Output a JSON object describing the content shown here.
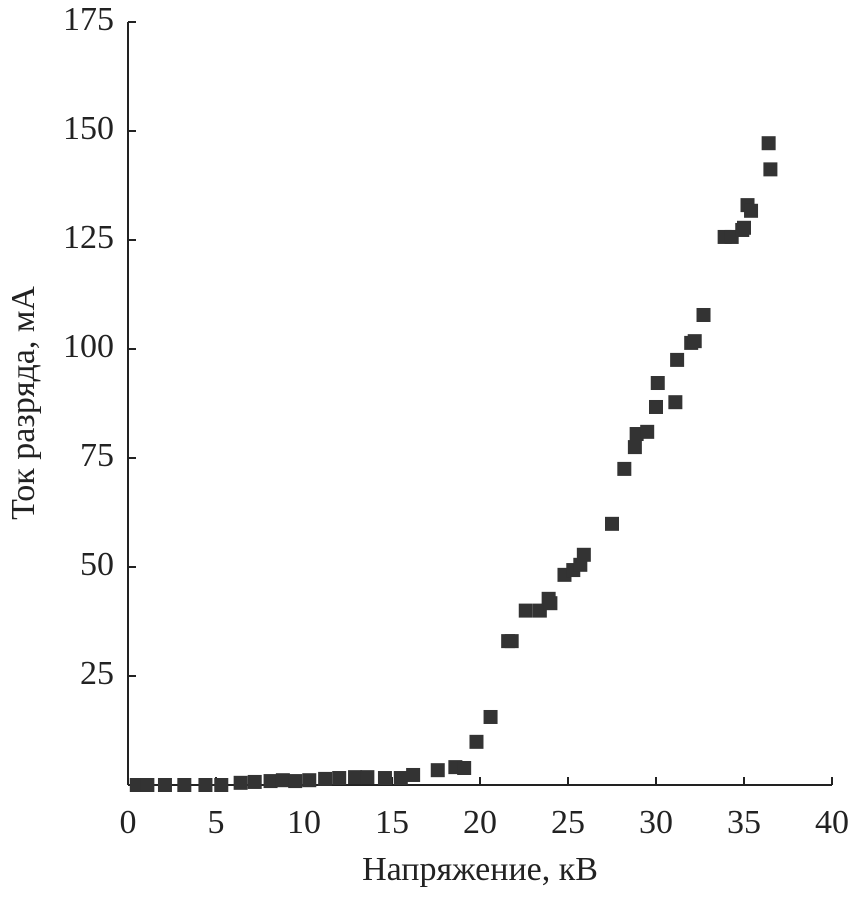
{
  "chart_data": {
    "type": "scatter",
    "x_label": "Напряжение, кВ",
    "y_label": "Ток разряда, мА",
    "series": [
      {
        "color": "#333333",
        "x": [
          0.5,
          1.1,
          2.1,
          3.2,
          4.4,
          5.3,
          6.4,
          7.2,
          8.1,
          8.8,
          9.5,
          10.3,
          11.2,
          12.0,
          12.9,
          13.6,
          14.6,
          15.5,
          16.2,
          17.6,
          18.6,
          19.1,
          19.8,
          20.6,
          21.6,
          21.8,
          22.6,
          23.4,
          23.9,
          24.0,
          24.8,
          25.3,
          25.7,
          25.9,
          27.5,
          28.2,
          28.8,
          28.9,
          29.5,
          30.0,
          30.1,
          31.1,
          31.2,
          32.0,
          32.2,
          32.7,
          33.9,
          34.3,
          34.9,
          35.0,
          35.2,
          35.4,
          36.4,
          36.5
        ],
        "values": [
          0,
          0,
          0,
          0,
          0,
          0,
          0.5,
          0.7,
          0.9,
          1.1,
          0.9,
          1.1,
          1.4,
          1.6,
          1.8,
          1.8,
          1.6,
          1.6,
          2.3,
          3.4,
          4.1,
          3.9,
          9.9,
          15.6,
          33,
          33,
          40,
          40,
          42.7,
          41.7,
          48.2,
          49.3,
          50.5,
          52.8,
          59.9,
          72.5,
          77.5,
          80.5,
          81,
          86.7,
          92.2,
          87.8,
          97.5,
          101.4,
          101.8,
          107.8,
          125.7,
          125.7,
          127.3,
          127.8,
          133,
          131.7,
          147.2,
          141.2
        ]
      }
    ],
    "xlim": [
      0,
      40
    ],
    "xticks": [
      0,
      5,
      10,
      15,
      20,
      25,
      30,
      35,
      40
    ],
    "ylim": [
      0,
      175
    ],
    "yticks": [
      25,
      50,
      75,
      100,
      125,
      150,
      175
    ],
    "grid": false
  }
}
